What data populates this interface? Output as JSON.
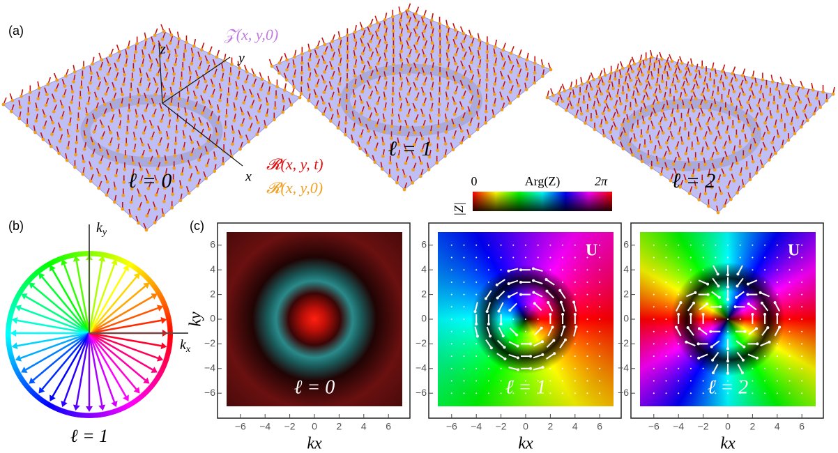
{
  "panel_a": {
    "label": "(a)",
    "axes": {
      "z": "z",
      "y": "y",
      "x": "x"
    },
    "surface_label": "𝒵(x, y,0)",
    "legend": [
      "𝓡(x, y, t)",
      "𝓡(x, y,0)"
    ],
    "plots": [
      "ℓ = 0",
      "ℓ = 1",
      "ℓ = 2"
    ]
  },
  "colorbar": {
    "y_label": "|Z|",
    "title": "Arg(Z)",
    "min_label": "0",
    "max_label": "2π"
  },
  "panel_b": {
    "label": "(b)",
    "kx": {
      "base": "k",
      "sub": "x"
    },
    "ky": {
      "base": "k",
      "sub": "y"
    },
    "caption": "ℓ = 1"
  },
  "panel_c": {
    "label": "(c)",
    "x_label": "kx",
    "y_label": "ky",
    "ticks": [
      {
        "value": -6,
        "label": "−6"
      },
      {
        "value": -4,
        "label": "−4"
      },
      {
        "value": -2,
        "label": "−2"
      },
      0,
      2,
      4,
      6
    ],
    "plots": [
      {
        "caption": "ℓ = 0"
      },
      {
        "caption": "ℓ = 1",
        "marker": "U"
      },
      {
        "caption": "ℓ = 2",
        "marker": "U"
      }
    ]
  }
}
